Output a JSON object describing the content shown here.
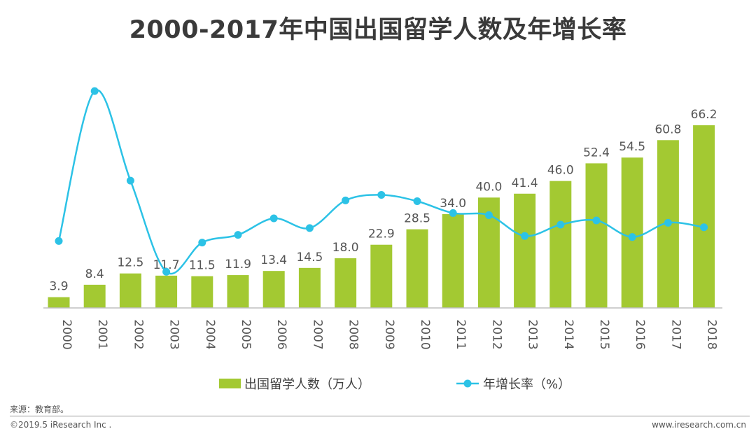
{
  "title": "2000-2017年中国出国留学人数及年增长率",
  "source": "来源：教育部。",
  "copyright": "©2019.5 iResearch Inc .",
  "website": "www.iresearch.com.cn",
  "colors": {
    "bar": "#a3c932",
    "line": "#2cc2e6",
    "axis": "#bfbfbf",
    "label": "#555555"
  },
  "chart_data": {
    "type": "bar",
    "title": "2000-2017年中国出国留学人数及年增长率",
    "categories": [
      "2000",
      "2001",
      "2002",
      "2003",
      "2004",
      "2005",
      "2006",
      "2007",
      "2008",
      "2009",
      "2010",
      "2011",
      "2012",
      "2013",
      "2014",
      "2015",
      "2016",
      "2017",
      "2018"
    ],
    "series": [
      {
        "name": "出国留学人数（万人）",
        "type": "bar",
        "values": [
          3.9,
          8.4,
          12.5,
          11.7,
          11.5,
          11.9,
          13.4,
          14.5,
          18.0,
          22.9,
          28.5,
          34.0,
          40.0,
          41.4,
          46.0,
          52.4,
          54.5,
          60.8,
          66.2
        ],
        "labels": [
          "3.9",
          "8.4",
          "12.5",
          "11.7",
          "11.5",
          "11.9",
          "13.4",
          "14.5",
          "18.0",
          "22.9",
          "28.5",
          "34.0",
          "40.0",
          "41.4",
          "46.0",
          "52.4",
          "54.5",
          "60.8",
          "66.2"
        ]
      },
      {
        "name": "年增长率（%）",
        "type": "line",
        "smooth": true,
        "values": [
          10.1,
          67.0,
          33.0,
          -1.6,
          9.5,
          12.4,
          18.7,
          15.0,
          25.5,
          27.6,
          25.2,
          20.7,
          19.9,
          12.0,
          16.3,
          17.9,
          11.6,
          17.0,
          15.3
        ]
      }
    ],
    "bar_ylim": [
      0,
      70
    ],
    "line_ylim": [
      -10,
      75
    ],
    "legend": {
      "position": "bottom-center",
      "entries": [
        "出国留学人数（万人）",
        "年增长率（%）"
      ]
    }
  }
}
